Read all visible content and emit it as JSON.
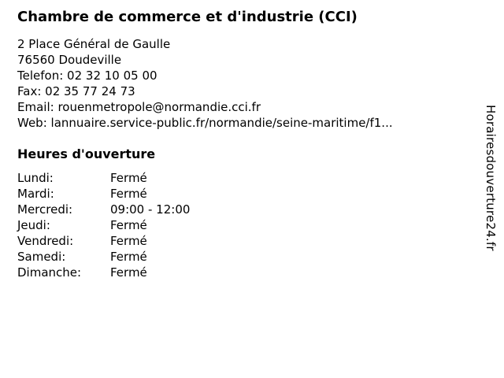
{
  "page": {
    "title": "Chambre de commerce et d'industrie (CCI)",
    "contact": {
      "address_line1": "2 Place Général de Gaulle",
      "address_line2": "76560 Doudeville",
      "phone_label": "Telefon:",
      "phone": "02 32 10 05 00",
      "fax_label": "Fax:",
      "fax": "02 35 77 24 73",
      "email_label": "Email:",
      "email": "rouenmetropole@normandie.cci.fr",
      "web_label": "Web:",
      "web": "lannuaire.service-public.fr/normandie/seine-maritime/f1..."
    },
    "hours": {
      "heading": "Heures d'ouverture",
      "rows": [
        {
          "day": "Lundi:",
          "value": "Fermé"
        },
        {
          "day": "Mardi:",
          "value": "Fermé"
        },
        {
          "day": "Mercredi:",
          "value": "09:00 - 12:00"
        },
        {
          "day": "Jeudi:",
          "value": "Fermé"
        },
        {
          "day": "Vendredi:",
          "value": "Fermé"
        },
        {
          "day": "Samedi:",
          "value": "Fermé"
        },
        {
          "day": "Dimanche:",
          "value": "Fermé"
        }
      ]
    },
    "watermark": "Horairesdouverture24.fr",
    "colors": {
      "background": "#ffffff",
      "text": "#000000"
    }
  }
}
